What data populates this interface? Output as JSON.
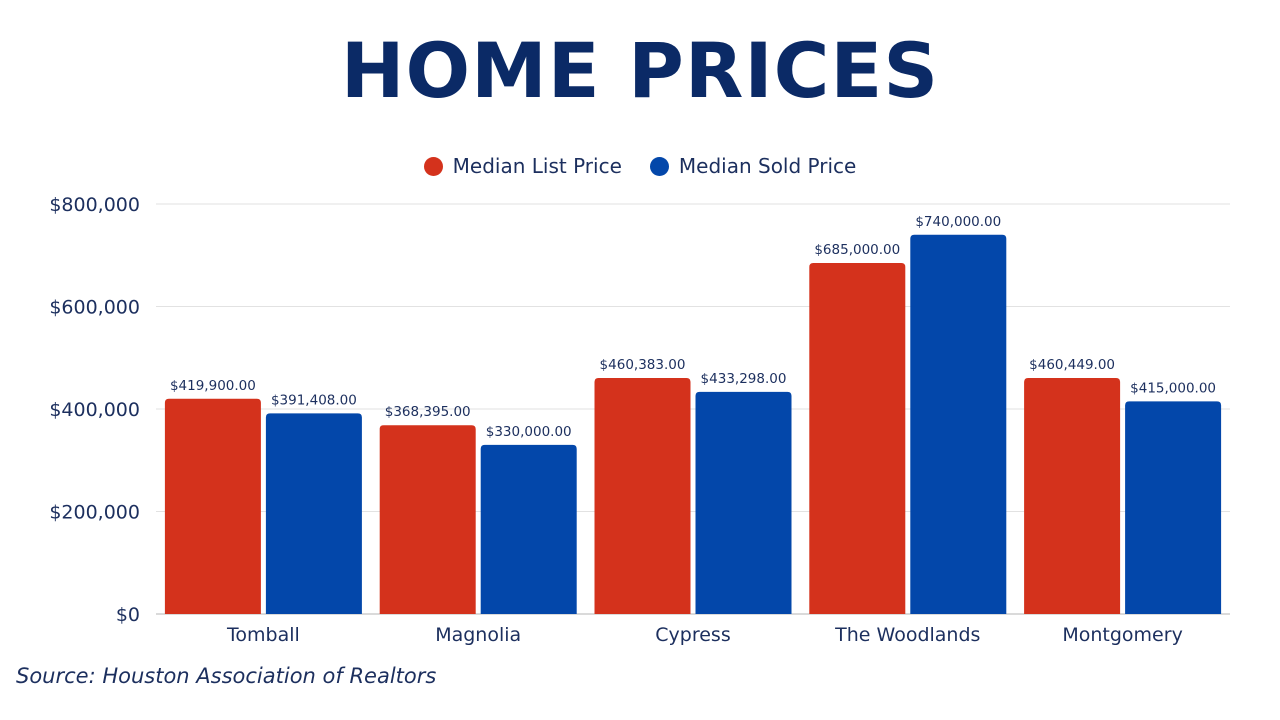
{
  "source": "Source: Houston Association of Realtors",
  "chart_data": {
    "type": "bar",
    "title": "HOME PRICES",
    "categories": [
      "Tomball",
      "Magnolia",
      "Cypress",
      "The Woodlands",
      "Montgomery"
    ],
    "series": [
      {
        "name": "Median List Price",
        "color": "#d4321c",
        "values": [
          419900,
          368395,
          460383,
          685000,
          460449
        ],
        "labels": [
          "$419,900.00",
          "$368,395.00",
          "$460,383.00",
          "$685,000.00",
          "$460,449.00"
        ]
      },
      {
        "name": "Median Sold Price",
        "color": "#0347aa",
        "values": [
          391408,
          330000,
          433298,
          740000,
          415000
        ],
        "labels": [
          "$391,408.00",
          "$330,000.00",
          "$433,298.00",
          "$740,000.00",
          "$415,000.00"
        ]
      }
    ],
    "ylim": [
      0,
      800000
    ],
    "yticks": [
      0,
      200000,
      400000,
      600000,
      800000
    ],
    "ytick_labels": [
      "$0",
      "$200,000",
      "$400,000",
      "$600,000",
      "$800,000"
    ],
    "grid": true,
    "legend_position": "top-center"
  }
}
